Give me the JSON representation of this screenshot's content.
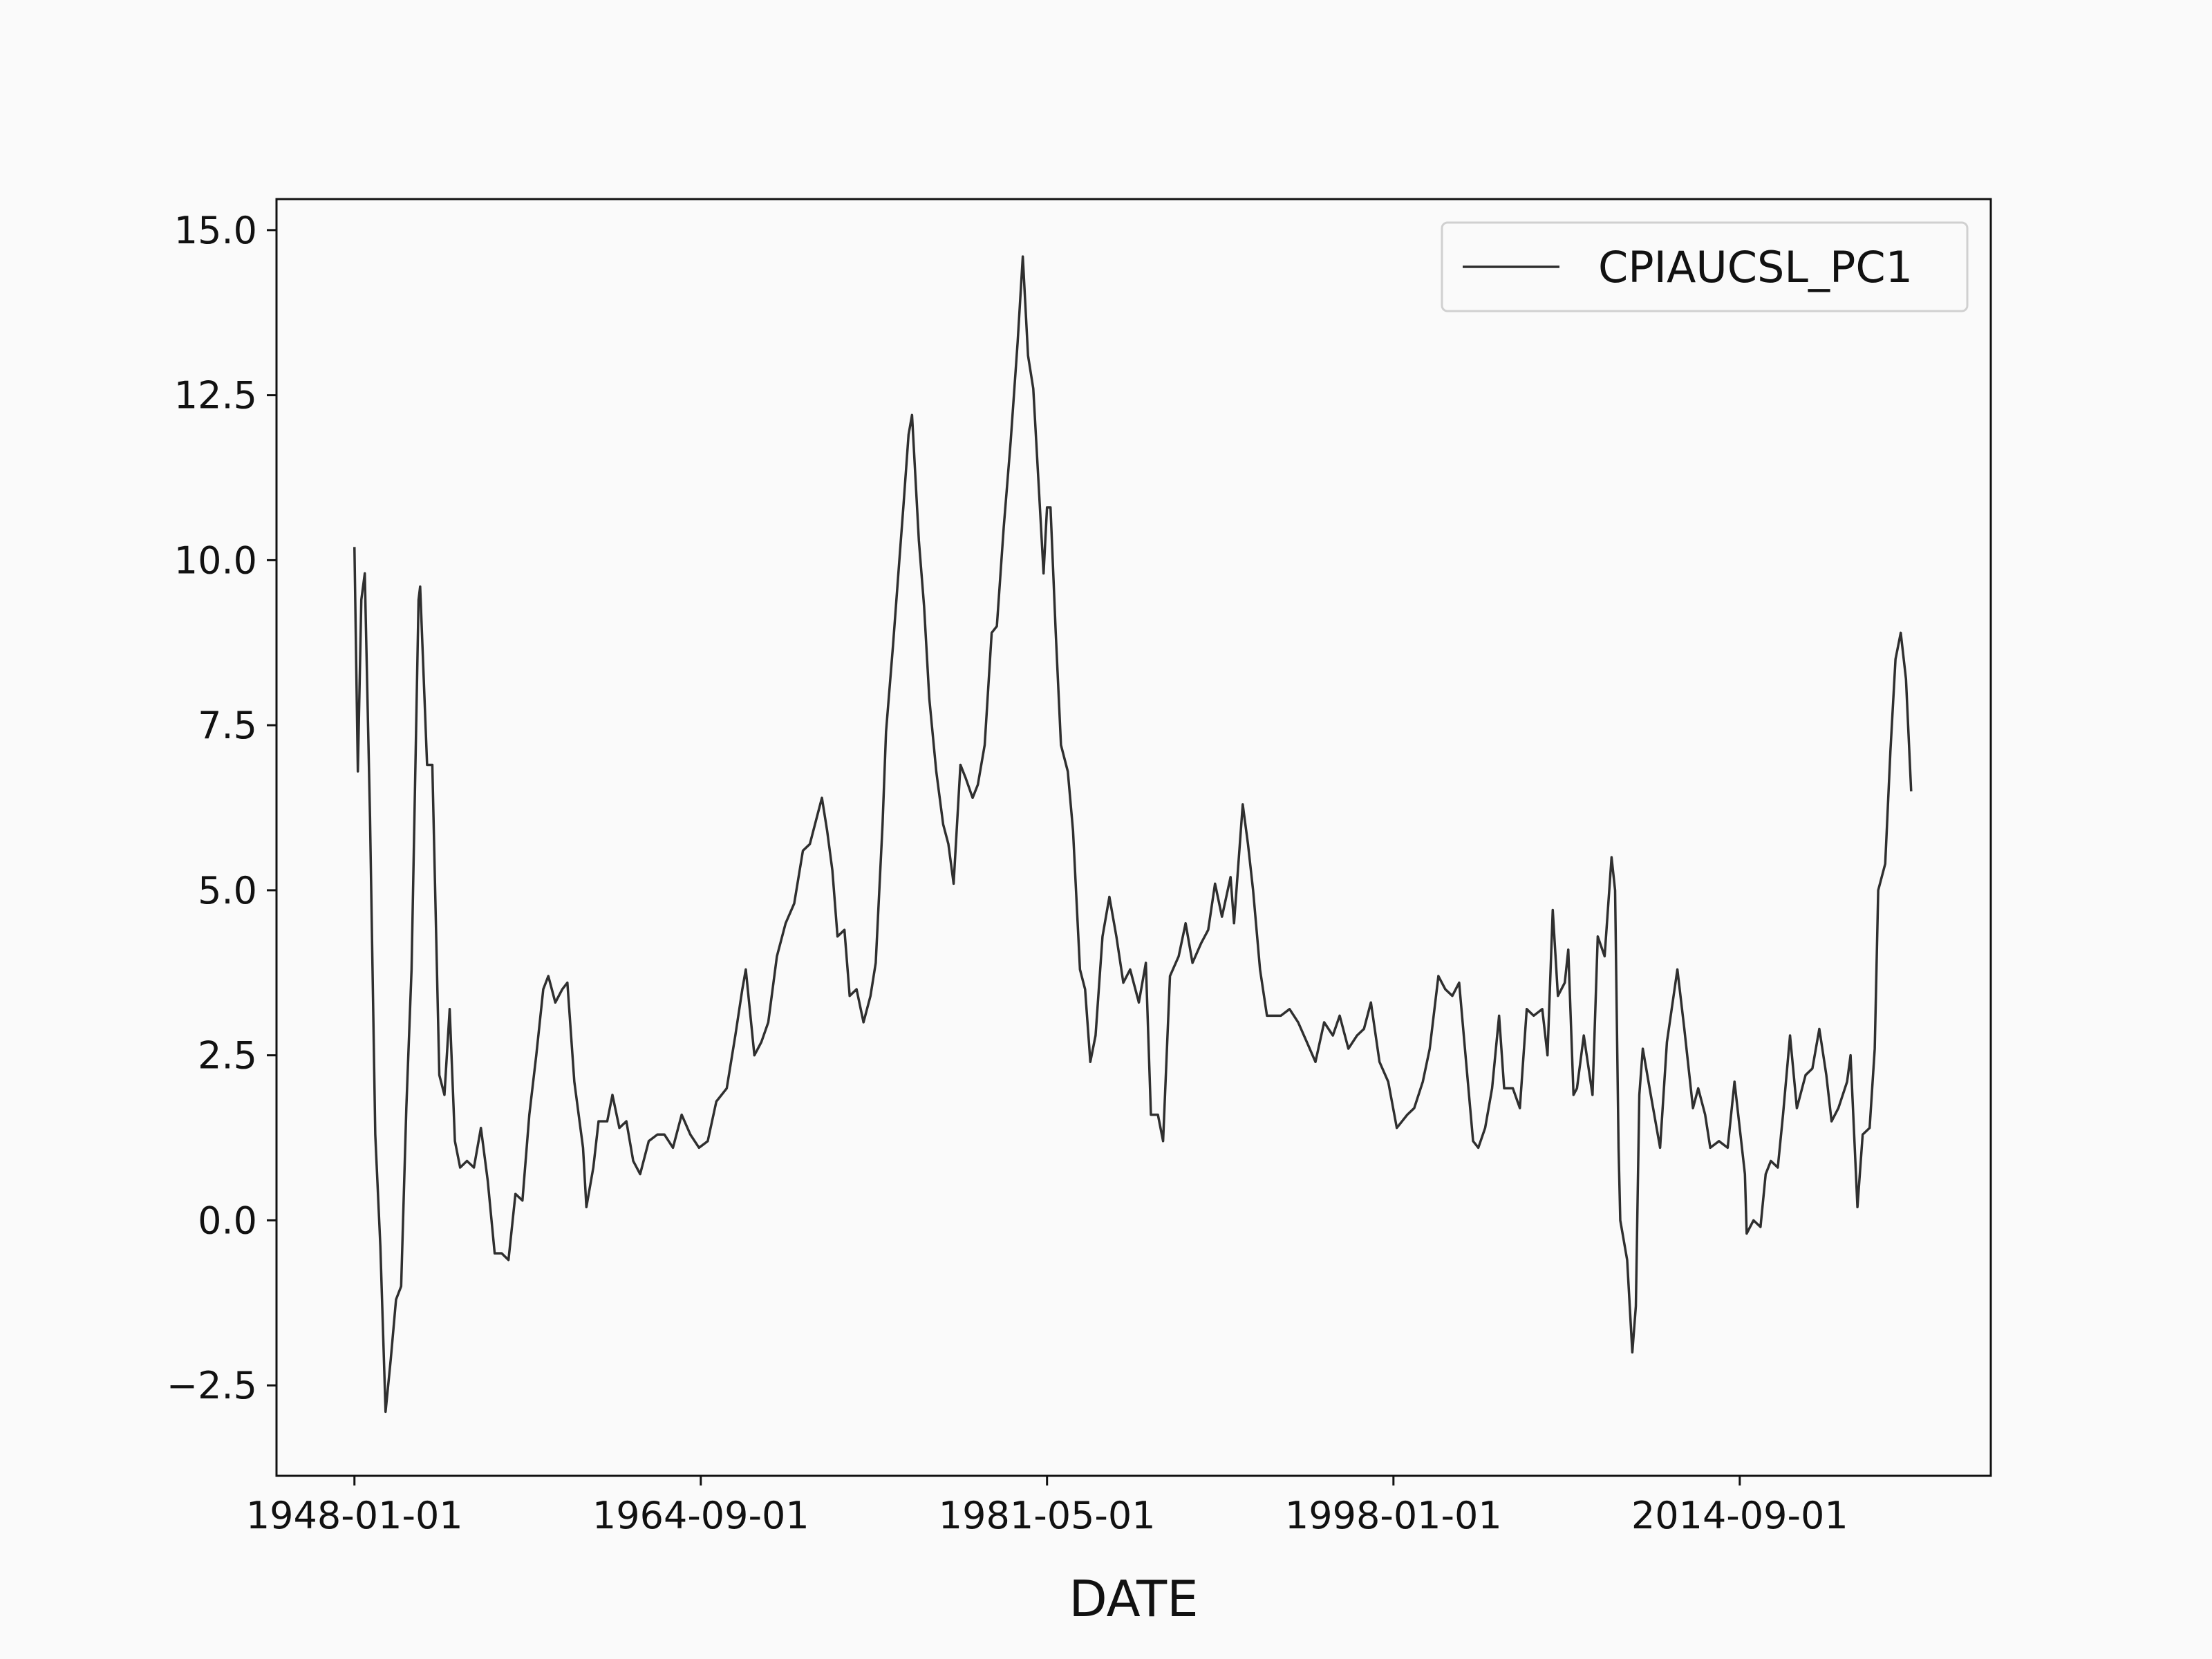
{
  "chart_data": {
    "type": "line",
    "xlabel": "DATE",
    "xlim": [
      "1944-04-01",
      "2026-10-01"
    ],
    "xticks": [
      "1948-01-01",
      "1964-09-01",
      "1981-05-01",
      "1998-01-01",
      "2014-09-01"
    ],
    "ylim": [
      -3.87,
      15.47
    ],
    "yticks": [
      {
        "value": -2.5,
        "label": "−2.5"
      },
      {
        "value": 0,
        "label": "0.0"
      },
      {
        "value": 2.5,
        "label": "2.5"
      },
      {
        "value": 5,
        "label": "5.0"
      },
      {
        "value": 7.5,
        "label": "7.5"
      },
      {
        "value": 10,
        "label": "10.0"
      },
      {
        "value": 12.5,
        "label": "12.5"
      },
      {
        "value": 15,
        "label": "15.0"
      }
    ],
    "legend": "upper right",
    "grid": false,
    "x": [
      "1948-01-01",
      "1948-03-01",
      "1948-05-01",
      "1948-07-01",
      "1948-10-01",
      "1949-01-01",
      "1949-04-01",
      "1949-07-01",
      "1949-10-01",
      "1950-01-01",
      "1950-04-01",
      "1950-07-01",
      "1950-10-01",
      "1951-02-01",
      "1951-03-01",
      "1951-07-01",
      "1951-10-01",
      "1952-02-01",
      "1952-05-01",
      "1952-08-01",
      "1952-11-01",
      "1953-02-01",
      "1953-06-01",
      "1953-10-01",
      "1954-02-01",
      "1954-06-01",
      "1954-10-01",
      "1955-02-01",
      "1955-06-01",
      "1955-10-01",
      "1956-02-01",
      "1956-06-01",
      "1956-10-01",
      "1957-02-01",
      "1957-05-01",
      "1957-09-01",
      "1958-01-01",
      "1958-04-01",
      "1958-08-01",
      "1959-01-01",
      "1959-03-01",
      "1959-07-01",
      "1959-10-01",
      "1960-03-01",
      "1960-06-01",
      "1960-10-01",
      "1961-02-01",
      "1961-06-01",
      "1961-10-01",
      "1962-03-01",
      "1962-08-01",
      "1962-12-01",
      "1963-05-01",
      "1963-10-01",
      "1964-03-01",
      "1964-08-01",
      "1965-01-01",
      "1965-06-01",
      "1965-12-01",
      "1966-05-01",
      "1966-09-01",
      "1966-11-01",
      "1967-04-01",
      "1967-08-01",
      "1967-12-01",
      "1968-05-01",
      "1968-10-01",
      "1969-03-01",
      "1969-08-01",
      "1969-12-01",
      "1970-04-01",
      "1970-07-01",
      "1970-10-01",
      "1971-01-01",
      "1971-04-01",
      "1971-08-01",
      "1971-11-01",
      "1972-03-01",
      "1972-07-01",
      "1972-11-01",
      "1973-02-01",
      "1973-06-01",
      "1973-08-01",
      "1973-12-01",
      "1974-04-01",
      "1974-06-01",
      "1974-09-01",
      "1974-11-01",
      "1975-03-01",
      "1975-06-01",
      "1975-09-01",
      "1976-01-01",
      "1976-05-01",
      "1976-08-01",
      "1976-11-01",
      "1977-03-01",
      "1977-06-01",
      "1977-10-01",
      "1978-01-01",
      "1978-05-01",
      "1978-09-01",
      "1978-12-01",
      "1979-04-01",
      "1979-08-01",
      "1979-12-01",
      "1980-03-01",
      "1980-06-01",
      "1980-09-01",
      "1980-12-01",
      "1981-03-01",
      "1981-05-01",
      "1981-07-01",
      "1981-10-01",
      "1982-01-01",
      "1982-05-01",
      "1982-08-01",
      "1982-12-01",
      "1983-03-01",
      "1983-06-01",
      "1983-09-01",
      "1984-01-01",
      "1984-05-01",
      "1984-09-01",
      "1985-01-01",
      "1985-05-01",
      "1985-10-01",
      "1986-02-01",
      "1986-05-01",
      "1986-09-01",
      "1986-12-01",
      "1987-04-01",
      "1987-09-01",
      "1988-01-01",
      "1988-05-01",
      "1988-10-01",
      "1989-02-01",
      "1989-06-01",
      "1989-10-01",
      "1990-03-01",
      "1990-05-01",
      "1990-10-01",
      "1991-01-01",
      "1991-04-01",
      "1991-08-01",
      "1991-12-01",
      "1992-03-01",
      "1992-08-01",
      "1993-01-01",
      "1993-06-01",
      "1993-11-01",
      "1994-04-01",
      "1994-09-01",
      "1995-02-01",
      "1995-06-01",
      "1995-11-01",
      "1996-04-01",
      "1996-08-01",
      "1996-12-01",
      "1997-05-01",
      "1997-10-01",
      "1998-03-01",
      "1998-09-01",
      "1999-01-01",
      "1999-06-01",
      "1999-10-01",
      "2000-03-01",
      "2000-07-01",
      "2000-11-01",
      "2001-03-01",
      "2001-07-01",
      "2001-11-01",
      "2002-02-01",
      "2002-06-01",
      "2002-10-01",
      "2003-02-01",
      "2003-05-01",
      "2003-10-01",
      "2004-02-01",
      "2004-06-01",
      "2004-10-01",
      "2005-03-01",
      "2005-06-01",
      "2005-09-01",
      "2005-12-01",
      "2006-04-01",
      "2006-06-01",
      "2006-09-01",
      "2006-11-01",
      "2007-03-01",
      "2007-08-01",
      "2007-11-01",
      "2008-03-01",
      "2008-07-01",
      "2008-09-01",
      "2008-11-01",
      "2008-12-01",
      "2009-04-01",
      "2009-07-01",
      "2009-09-01",
      "2009-11-01",
      "2010-01-01",
      "2010-05-01",
      "2010-11-01",
      "2011-03-01",
      "2011-09-01",
      "2012-01-01",
      "2012-06-01",
      "2012-09-01",
      "2013-01-01",
      "2013-04-01",
      "2013-09-01",
      "2014-02-01",
      "2014-06-01",
      "2014-12-01",
      "2015-01-01",
      "2015-05-01",
      "2015-09-01",
      "2015-12-01",
      "2016-03-01",
      "2016-07-01",
      "2016-10-01",
      "2017-02-01",
      "2017-06-01",
      "2017-11-01",
      "2018-03-01",
      "2018-07-01",
      "2018-11-01",
      "2019-02-01",
      "2019-06-01",
      "2019-11-01",
      "2020-01-01",
      "2020-05-01",
      "2020-08-01",
      "2020-12-01",
      "2021-03-01",
      "2021-05-01",
      "2021-09-01",
      "2021-12-01",
      "2022-03-01",
      "2022-06-01",
      "2022-09-01",
      "2022-12-01"
    ],
    "series": [
      {
        "name": "CPIAUCSL_PC1",
        "color": "#2f2f2f",
        "values": [
          10.2,
          6.8,
          9.4,
          9.8,
          6.1,
          1.3,
          -0.4,
          -2.9,
          -2.1,
          -1.2,
          -1.0,
          1.7,
          3.8,
          9.4,
          9.6,
          6.9,
          6.9,
          2.2,
          1.9,
          3.2,
          1.2,
          0.8,
          0.9,
          0.8,
          1.4,
          0.6,
          -0.5,
          -0.5,
          -0.6,
          0.4,
          0.3,
          1.6,
          2.5,
          3.5,
          3.7,
          3.3,
          3.5,
          3.6,
          2.1,
          1.1,
          0.2,
          0.8,
          1.5,
          1.5,
          1.9,
          1.4,
          1.5,
          0.9,
          0.7,
          1.2,
          1.3,
          1.3,
          1.1,
          1.6,
          1.3,
          1.1,
          1.2,
          1.8,
          2.0,
          2.8,
          3.5,
          3.8,
          2.5,
          2.7,
          3.0,
          4.0,
          4.5,
          4.8,
          5.6,
          5.7,
          6.1,
          6.4,
          5.9,
          5.3,
          4.3,
          4.4,
          3.4,
          3.5,
          3.0,
          3.4,
          3.9,
          6.0,
          7.4,
          8.7,
          10.1,
          10.8,
          11.9,
          12.2,
          10.3,
          9.3,
          7.9,
          6.8,
          6.0,
          5.7,
          5.1,
          6.9,
          6.7,
          6.4,
          6.6,
          7.2,
          8.9,
          9.0,
          10.5,
          11.8,
          13.3,
          14.6,
          13.1,
          12.6,
          11.2,
          9.8,
          10.8,
          10.8,
          8.9,
          7.2,
          6.8,
          5.9,
          3.8,
          3.5,
          2.4,
          2.8,
          4.3,
          4.9,
          4.3,
          3.6,
          3.8,
          3.3,
          3.9,
          1.6,
          1.6,
          1.2,
          3.7,
          4.0,
          4.5,
          3.9,
          4.2,
          4.4,
          5.1,
          4.6,
          5.2,
          4.5,
          6.3,
          5.7,
          5.0,
          3.8,
          3.1,
          3.1,
          3.1,
          3.2,
          3.0,
          2.7,
          2.4,
          3.0,
          2.8,
          3.1,
          2.6,
          2.8,
          2.9,
          3.3,
          2.4,
          2.1,
          1.4,
          1.6,
          1.7,
          2.1,
          2.6,
          3.7,
          3.5,
          3.4,
          3.6,
          2.4,
          1.2,
          1.1,
          1.4,
          2.0,
          3.1,
          2.0,
          2.0,
          1.7,
          3.2,
          3.1,
          3.2,
          2.5,
          4.7,
          3.4,
          3.6,
          4.1,
          1.9,
          2.0,
          2.8,
          1.9,
          4.3,
          4.0,
          5.5,
          5.0,
          1.1,
          0.0,
          -0.6,
          -2.0,
          -1.3,
          1.9,
          2.6,
          2.0,
          1.1,
          2.7,
          3.8,
          2.9,
          1.7,
          2.0,
          1.6,
          1.1,
          1.2,
          1.1,
          2.1,
          0.7,
          -0.2,
          0.0,
          -0.1,
          0.7,
          0.9,
          0.8,
          1.6,
          2.8,
          1.7,
          2.2,
          2.3,
          2.9,
          2.2,
          1.5,
          1.7,
          2.1,
          2.5,
          0.2,
          1.3,
          1.4,
          2.6,
          5.0,
          5.4,
          7.1,
          8.5,
          8.9,
          8.2,
          6.5
        ]
      }
    ]
  }
}
